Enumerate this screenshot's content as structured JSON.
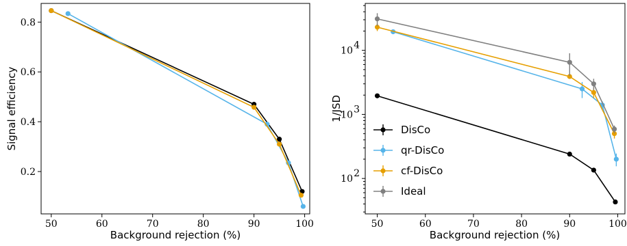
{
  "chart_data": [
    {
      "type": "line",
      "xlabel": "Background rejection (%)",
      "ylabel": "Signal efficiency",
      "xlim": [
        48,
        101
      ],
      "ylim": [
        0.03,
        0.875
      ],
      "xscale": "linear",
      "yscale": "linear",
      "xticks": [
        50,
        60,
        70,
        80,
        90,
        100
      ],
      "xtick_labels": [
        "50",
        "60",
        "70",
        "80",
        "90",
        "100"
      ],
      "yticks": [
        0.2,
        0.4,
        0.6,
        0.8
      ],
      "ytick_labels": [
        "0.2",
        "0.4",
        "0.6",
        "0.8"
      ],
      "grid": false,
      "series": [
        {
          "color": "#000000",
          "x": [
            50,
            90,
            95,
            99.5
          ],
          "y": [
            0.846,
            0.47,
            0.33,
            0.12
          ]
        },
        {
          "color": "#56B4E9",
          "x": [
            53.3,
            92.6,
            96.8,
            99.7
          ],
          "y": [
            0.834,
            0.39,
            0.235,
            0.06
          ]
        },
        {
          "color": "#E69F00",
          "x": [
            50,
            90,
            95,
            99.3
          ],
          "y": [
            0.846,
            0.458,
            0.31,
            0.105
          ]
        }
      ]
    },
    {
      "type": "line",
      "xlabel": "Background rejection (%)",
      "ylabel": "1/JSD",
      "xlim": [
        47.5,
        101.5
      ],
      "ylim": [
        28,
        54000
      ],
      "xscale": "linear",
      "yscale": "log",
      "xticks": [
        50,
        60,
        70,
        80,
        90,
        100
      ],
      "xtick_labels": [
        "50",
        "60",
        "70",
        "80",
        "90",
        "100"
      ],
      "yticks": [
        100,
        1000,
        10000
      ],
      "ytick_labels": [
        "10",
        "10",
        "10"
      ],
      "ytick_exponents": [
        "2",
        "3",
        "4"
      ],
      "grid": false,
      "legend_position": "bottom-left",
      "series": [
        {
          "name": "DisCo",
          "color": "#000000",
          "x": [
            50,
            90,
            95,
            99.5
          ],
          "y": [
            1950,
            240,
            135,
            43
          ],
          "err": [
            0,
            0,
            0,
            0
          ]
        },
        {
          "name": "qr-DisCo",
          "color": "#56B4E9",
          "x": [
            53.3,
            92.6,
            96.8,
            99.7
          ],
          "y": [
            19500,
            2500,
            1400,
            200
          ],
          "err": [
            1500,
            700,
            200,
            45
          ]
        },
        {
          "name": "cf-DisCo",
          "color": "#E69F00",
          "x": [
            50,
            90,
            95,
            99.3
          ],
          "y": [
            23000,
            3900,
            2200,
            500
          ],
          "err": [
            3000,
            0,
            400,
            80
          ]
        },
        {
          "name": "Ideal",
          "color": "#808080",
          "x": [
            50,
            90,
            95,
            99.3
          ],
          "y": [
            31000,
            6500,
            3000,
            590
          ],
          "err": [
            7000,
            2500,
            600,
            80
          ]
        }
      ]
    }
  ]
}
